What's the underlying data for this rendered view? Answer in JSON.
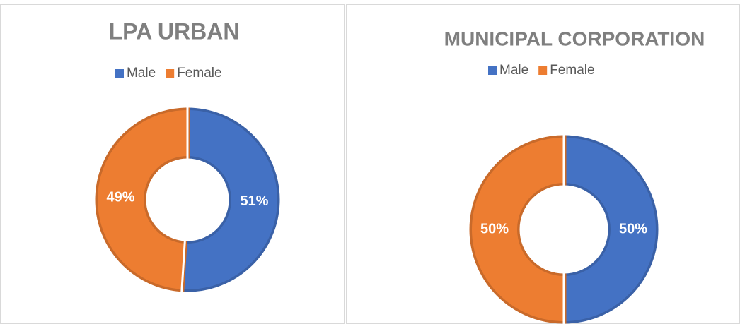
{
  "chart_data": [
    {
      "type": "donut",
      "title": "LPA URBAN",
      "categories": [
        "Male",
        "Female"
      ],
      "values": [
        51,
        49
      ],
      "value_labels": [
        "51%",
        "49%"
      ],
      "colors": [
        "#4472c4",
        "#ed7d31"
      ],
      "legend": "top"
    },
    {
      "type": "donut",
      "title": "MUNICIPAL CORPORATION",
      "categories": [
        "Male",
        "Female"
      ],
      "values": [
        50,
        50
      ],
      "value_labels": [
        "50%",
        "50%"
      ],
      "colors": [
        "#4472c4",
        "#ed7d31"
      ],
      "legend": "top"
    }
  ]
}
